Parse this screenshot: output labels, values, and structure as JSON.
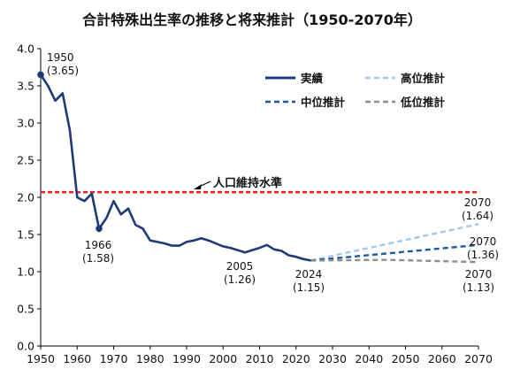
{
  "chart_data": {
    "type": "line",
    "title": "合計特殊出生率の推移と将来推計（1950-2070年）",
    "xlabel": "",
    "ylabel": "",
    "xlim": [
      1950,
      2070
    ],
    "ylim": [
      0.0,
      4.0
    ],
    "x_ticks": [
      1950,
      1960,
      1970,
      1980,
      1990,
      2000,
      2010,
      2020,
      2030,
      2040,
      2050,
      2060,
      2070
    ],
    "y_ticks": [
      "0.0",
      "0.5",
      "1.0",
      "1.5",
      "2.0",
      "2.5",
      "3.0",
      "3.5",
      "4.0"
    ],
    "grid": false,
    "legend_position": "top-right",
    "series": [
      {
        "name": "実績",
        "color": "#1f3a78",
        "style": "solid",
        "x": [
          1950,
          1952,
          1954,
          1956,
          1958,
          1960,
          1962,
          1964,
          1966,
          1968,
          1970,
          1972,
          1974,
          1976,
          1978,
          1980,
          1982,
          1984,
          1986,
          1988,
          1990,
          1992,
          1994,
          1996,
          1998,
          2000,
          2002,
          2004,
          2006,
          2008,
          2010,
          2012,
          2014,
          2016,
          2018,
          2020,
          2022,
          2024
        ],
        "y": [
          3.65,
          3.5,
          3.3,
          3.4,
          2.9,
          2.0,
          1.95,
          2.05,
          1.58,
          1.72,
          1.95,
          1.77,
          1.85,
          1.63,
          1.58,
          1.42,
          1.4,
          1.38,
          1.35,
          1.35,
          1.4,
          1.42,
          1.45,
          1.42,
          1.38,
          1.34,
          1.32,
          1.29,
          1.26,
          1.29,
          1.32,
          1.36,
          1.3,
          1.28,
          1.22,
          1.2,
          1.17,
          1.15
        ]
      },
      {
        "name": "高位推計",
        "color": "#a6c8e8",
        "style": "dashed",
        "x": [
          2024,
          2070
        ],
        "y": [
          1.15,
          1.64
        ]
      },
      {
        "name": "中位推計",
        "color": "#1f5a9e",
        "style": "dashed",
        "x": [
          2024,
          2070
        ],
        "y": [
          1.15,
          1.36
        ]
      },
      {
        "name": "低位推計",
        "color": "#8e8e8e",
        "style": "dashed",
        "x": [
          2024,
          2045,
          2070
        ],
        "y": [
          1.15,
          1.16,
          1.13
        ]
      }
    ],
    "reference_line": {
      "label": "人口維持水準",
      "value": 2.07,
      "color": "#e8231e"
    },
    "annotations": [
      {
        "year": "1950",
        "value": "(3.65)"
      },
      {
        "year": "1966",
        "value": "(1.58)"
      },
      {
        "year": "2005",
        "value": "(1.26)"
      },
      {
        "year": "2024",
        "value": "(1.15)"
      },
      {
        "year": "2070",
        "value": "(1.64)"
      },
      {
        "year": "2070",
        "value": "(1.36)"
      },
      {
        "year": "2070",
        "value": "(1.13)"
      }
    ]
  }
}
